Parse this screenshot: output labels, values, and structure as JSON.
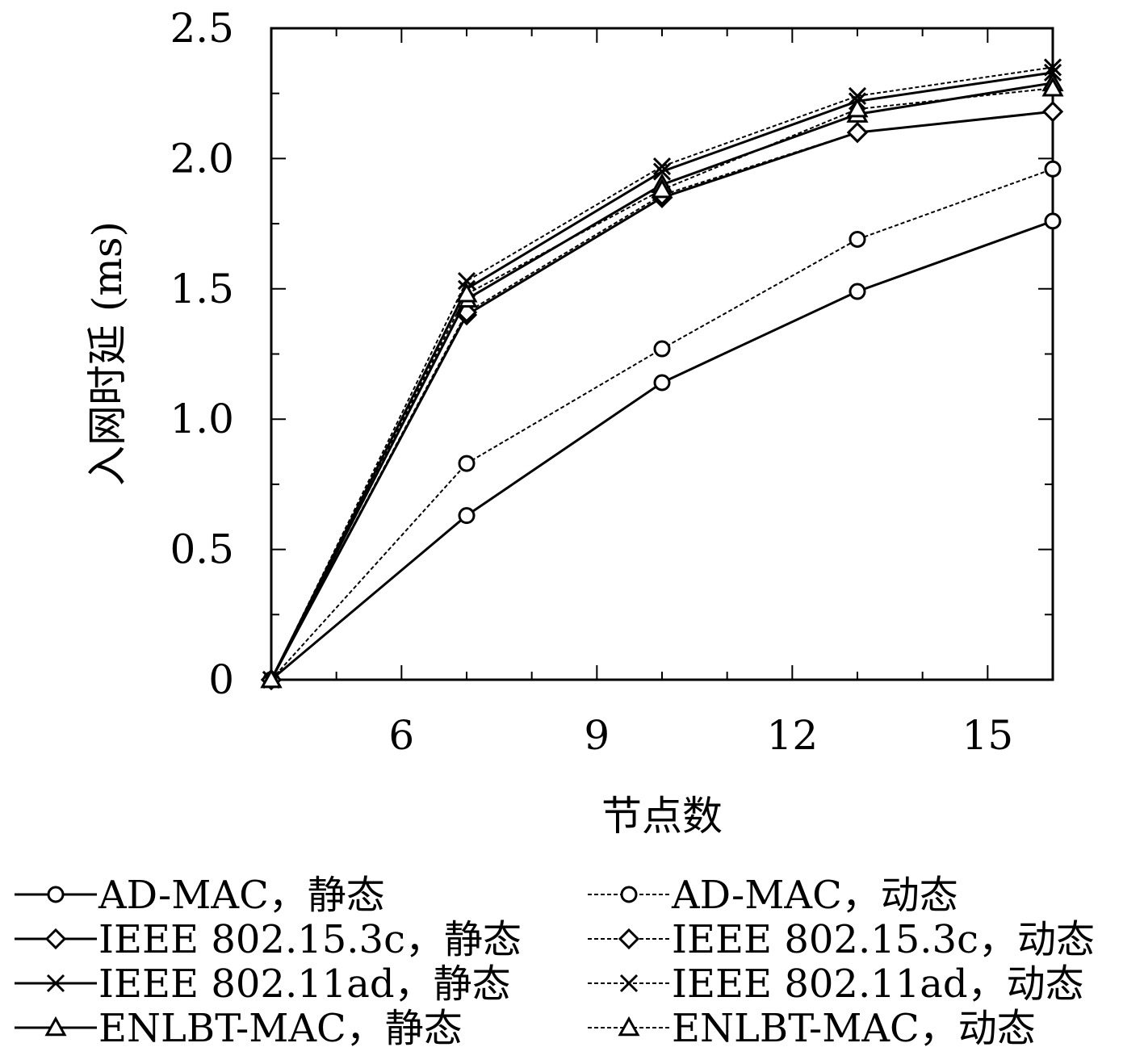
{
  "chart_data": {
    "type": "line",
    "title": "",
    "xlabel": "节点数",
    "ylabel": "入网时延 (ms)",
    "xlim": [
      4,
      16
    ],
    "ylim": [
      0,
      2.5
    ],
    "x_ticks": [
      6,
      9,
      12,
      15
    ],
    "x_tick_labels": [
      "6",
      "9",
      "12",
      "15"
    ],
    "y_ticks": [
      0,
      0.5,
      1.0,
      1.5,
      2.0,
      2.5
    ],
    "y_tick_labels": [
      "0",
      "0.5",
      "1.0",
      "1.5",
      "2.0",
      "2.5"
    ],
    "grid": false,
    "legend_position": "bottom",
    "x": [
      4,
      7,
      10,
      13,
      16
    ],
    "series": [
      {
        "name": "AD-MAC，静态",
        "marker": "circle",
        "dash": "solid",
        "values": [
          0,
          0.63,
          1.14,
          1.49,
          1.76
        ]
      },
      {
        "name": "AD-MAC，动态",
        "marker": "circle",
        "dash": "dashed",
        "values": [
          0,
          0.83,
          1.27,
          1.69,
          1.96
        ]
      },
      {
        "name": "IEEE 802.15.3c，静态",
        "marker": "diamond",
        "dash": "solid",
        "values": [
          0,
          1.4,
          1.85,
          2.1,
          2.18
        ]
      },
      {
        "name": "IEEE 802.15.3c，动态",
        "marker": "diamond",
        "dash": "dashed",
        "values": [
          0,
          1.41,
          1.86,
          2.1,
          2.18
        ]
      },
      {
        "name": "IEEE 802.11ad，静态",
        "marker": "cross",
        "dash": "solid",
        "values": [
          0,
          1.5,
          1.95,
          2.22,
          2.33
        ]
      },
      {
        "name": "IEEE 802.11ad，动态",
        "marker": "cross",
        "dash": "dashed",
        "values": [
          0,
          1.53,
          1.97,
          2.24,
          2.35
        ]
      },
      {
        "name": "ENLBT-MAC，静态",
        "marker": "triangle",
        "dash": "solid",
        "values": [
          0,
          1.46,
          1.9,
          2.17,
          2.29
        ]
      },
      {
        "name": "ENLBT-MAC，动态",
        "marker": "triangle",
        "dash": "dashed",
        "values": [
          0,
          1.48,
          1.88,
          2.19,
          2.27
        ]
      }
    ]
  }
}
